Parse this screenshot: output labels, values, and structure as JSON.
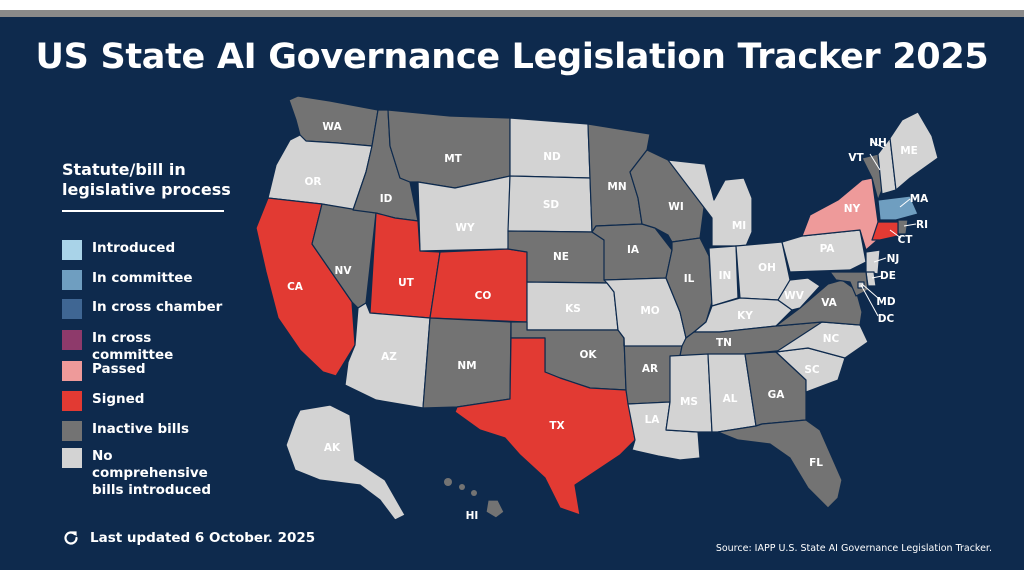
{
  "title": "US State AI Governance Legislation Tracker 2025",
  "legend": {
    "heading": "Statute/bill in\nlegislative process",
    "items": [
      {
        "key": "introduced",
        "label": "Introduced",
        "color": "#a9d3e8"
      },
      {
        "key": "committee",
        "label": "In committee",
        "color": "#6f9ec0"
      },
      {
        "key": "cross_chamber",
        "label": "In cross chamber",
        "color": "#3f6693"
      },
      {
        "key": "cross_committee",
        "label": "In cross committee",
        "color": "#8e3a6b"
      },
      {
        "key": "passed",
        "label": "Passed",
        "color": "#ee9a9a"
      },
      {
        "key": "signed",
        "label": "Signed",
        "color": "#e23a33"
      },
      {
        "key": "inactive",
        "label": "Inactive bills",
        "color": "#737373"
      },
      {
        "key": "none",
        "label": "No comprehensive\nbills introduced",
        "color": "#d3d3d3"
      }
    ]
  },
  "updated": {
    "icon": "refresh-icon",
    "text": "Last updated 6 October. 2025"
  },
  "source": "Source: IAPP U.S. State AI Governance Legislation Tracker.",
  "states": [
    {
      "abbr": "WA",
      "status": "inactive"
    },
    {
      "abbr": "OR",
      "status": "none"
    },
    {
      "abbr": "CA",
      "status": "signed"
    },
    {
      "abbr": "NV",
      "status": "inactive"
    },
    {
      "abbr": "ID",
      "status": "inactive"
    },
    {
      "abbr": "MT",
      "status": "inactive"
    },
    {
      "abbr": "WY",
      "status": "none"
    },
    {
      "abbr": "UT",
      "status": "signed"
    },
    {
      "abbr": "CO",
      "status": "signed"
    },
    {
      "abbr": "AZ",
      "status": "none"
    },
    {
      "abbr": "NM",
      "status": "inactive"
    },
    {
      "abbr": "ND",
      "status": "none"
    },
    {
      "abbr": "SD",
      "status": "none"
    },
    {
      "abbr": "NE",
      "status": "inactive"
    },
    {
      "abbr": "KS",
      "status": "none"
    },
    {
      "abbr": "OK",
      "status": "inactive"
    },
    {
      "abbr": "TX",
      "status": "signed"
    },
    {
      "abbr": "MN",
      "status": "inactive"
    },
    {
      "abbr": "IA",
      "status": "inactive"
    },
    {
      "abbr": "MO",
      "status": "none"
    },
    {
      "abbr": "AR",
      "status": "inactive"
    },
    {
      "abbr": "LA",
      "status": "none"
    },
    {
      "abbr": "WI",
      "status": "inactive"
    },
    {
      "abbr": "IL",
      "status": "inactive"
    },
    {
      "abbr": "MI",
      "status": "none"
    },
    {
      "abbr": "IN",
      "status": "none"
    },
    {
      "abbr": "OH",
      "status": "none"
    },
    {
      "abbr": "KY",
      "status": "none"
    },
    {
      "abbr": "TN",
      "status": "inactive"
    },
    {
      "abbr": "MS",
      "status": "none"
    },
    {
      "abbr": "AL",
      "status": "none"
    },
    {
      "abbr": "GA",
      "status": "inactive"
    },
    {
      "abbr": "FL",
      "status": "inactive"
    },
    {
      "abbr": "SC",
      "status": "none"
    },
    {
      "abbr": "NC",
      "status": "none"
    },
    {
      "abbr": "VA",
      "status": "inactive"
    },
    {
      "abbr": "WV",
      "status": "none"
    },
    {
      "abbr": "PA",
      "status": "none"
    },
    {
      "abbr": "NY",
      "status": "passed"
    },
    {
      "abbr": "VT",
      "status": "inactive"
    },
    {
      "abbr": "NH",
      "status": "none"
    },
    {
      "abbr": "ME",
      "status": "none"
    },
    {
      "abbr": "MA",
      "status": "committee"
    },
    {
      "abbr": "RI",
      "status": "inactive"
    },
    {
      "abbr": "CT",
      "status": "signed"
    },
    {
      "abbr": "NJ",
      "status": "none"
    },
    {
      "abbr": "DE",
      "status": "none"
    },
    {
      "abbr": "MD",
      "status": "inactive"
    },
    {
      "abbr": "DC",
      "status": "none"
    },
    {
      "abbr": "AK",
      "status": "none"
    },
    {
      "abbr": "HI",
      "status": "inactive"
    }
  ]
}
